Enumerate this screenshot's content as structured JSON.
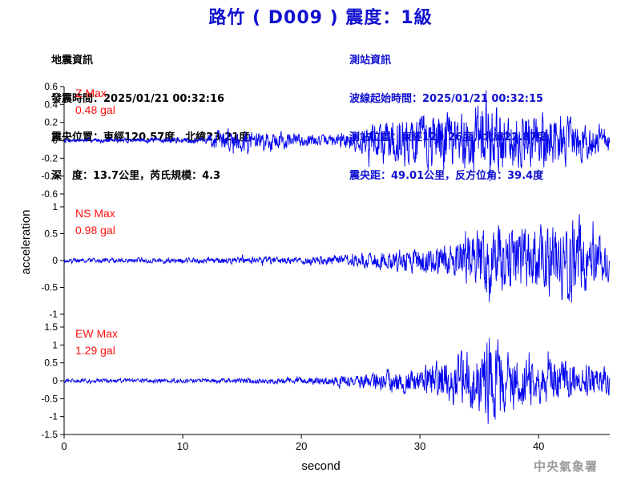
{
  "title": "路竹 ( D009 ) 震度：1級",
  "quake_info": {
    "heading": "地震資訊",
    "origin_time": "發震時間：2025/01/21 00:32:16",
    "epicenter": "震央位置：東經120.57度，北緯23.21度",
    "depth_magnitude": "深　度：13.7公里，芮氏規模：4.3"
  },
  "station_info": {
    "heading": "測站資訊",
    "wave_start": "波線起始時間：2025/01/21 00:32:15",
    "station_location": "測站位置：東經120.26度，北緯22.87度",
    "distance_azimuth": "震央距：49.01公里，反方位角：39.4度"
  },
  "credit": "中央氣象署",
  "colors": {
    "trace": "#0000ee",
    "max_label": "#ff1010",
    "title": "#1010d0"
  },
  "chart_data": {
    "type": "line",
    "xlabel": "second",
    "ylabel": "acceleration",
    "xlim": [
      0,
      46
    ],
    "xticks": [
      "0",
      "10",
      "20",
      "30",
      "40"
    ],
    "xtick_values": [
      0,
      10,
      20,
      30,
      40
    ],
    "panels": [
      {
        "name": "Z",
        "max_label": "Z Max",
        "max_value": "0.48 gal",
        "ylim": [
          -0.6,
          0.6
        ],
        "yticks": [
          "0.6",
          "0.4",
          "0.2",
          "0",
          "-0.2",
          "-0.4",
          "-0.6"
        ],
        "ytick_values": [
          0.6,
          0.4,
          0.2,
          0,
          -0.2,
          -0.4,
          -0.6
        ],
        "envelope": [
          [
            0,
            0.02
          ],
          [
            12,
            0.03
          ],
          [
            12.2,
            0.09
          ],
          [
            14,
            0.12
          ],
          [
            16,
            0.11
          ],
          [
            19,
            0.08
          ],
          [
            22,
            0.05
          ],
          [
            24,
            0.1
          ],
          [
            26,
            0.17
          ],
          [
            28,
            0.26
          ],
          [
            31,
            0.3
          ],
          [
            34,
            0.3
          ],
          [
            36,
            0.4
          ],
          [
            38,
            0.3
          ],
          [
            40,
            0.28
          ],
          [
            42,
            0.26
          ],
          [
            44,
            0.2
          ],
          [
            46,
            0.14
          ]
        ],
        "seed": 7
      },
      {
        "name": "NS",
        "max_label": "NS Max",
        "max_value": "0.98 gal",
        "ylim": [
          -1,
          1
        ],
        "yticks": [
          "1",
          "0.5",
          "0",
          "-0.5",
          "-1"
        ],
        "ytick_values": [
          1,
          0.5,
          0,
          -0.5,
          -1
        ],
        "envelope": [
          [
            0,
            0.04
          ],
          [
            12,
            0.05
          ],
          [
            20,
            0.07
          ],
          [
            24,
            0.1
          ],
          [
            26,
            0.16
          ],
          [
            30,
            0.22
          ],
          [
            33,
            0.32
          ],
          [
            35,
            0.55
          ],
          [
            37,
            0.6
          ],
          [
            39,
            0.55
          ],
          [
            41,
            0.6
          ],
          [
            43,
            0.85
          ],
          [
            44,
            0.55
          ],
          [
            46,
            0.4
          ]
        ],
        "seed": 19
      },
      {
        "name": "EW",
        "max_label": "EW Max",
        "max_value": "1.29 gal",
        "ylim": [
          -1.5,
          1.5
        ],
        "yticks": [
          "1.5",
          "1",
          "0.5",
          "0",
          "-0.5",
          "-1",
          "-1.5"
        ],
        "ytick_values": [
          1.5,
          1,
          0.5,
          0,
          -0.5,
          -1,
          -1.5
        ],
        "envelope": [
          [
            0,
            0.05
          ],
          [
            12,
            0.06
          ],
          [
            20,
            0.09
          ],
          [
            24,
            0.15
          ],
          [
            26,
            0.22
          ],
          [
            30,
            0.35
          ],
          [
            33,
            0.6
          ],
          [
            35,
            0.85
          ],
          [
            36,
            1.2
          ],
          [
            37,
            0.8
          ],
          [
            39,
            0.65
          ],
          [
            42,
            0.55
          ],
          [
            44,
            0.45
          ],
          [
            46,
            0.35
          ]
        ],
        "seed": 31
      }
    ]
  }
}
